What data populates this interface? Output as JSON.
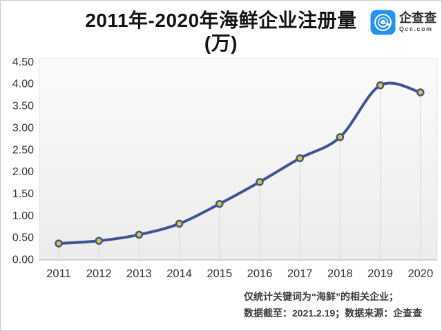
{
  "header": {
    "title_line1": "2011年-2020年海鲜企业注册量",
    "title_line2": "(万)"
  },
  "logo": {
    "brand": "企查查",
    "site": "Qcc.com",
    "icon_color": "#2592f3"
  },
  "footer": {
    "note1": "仅统计关键词为“海鲜”的相关企业；",
    "note2": "数据截至：2021.2.19；数据来源：企查查"
  },
  "chart_data": {
    "type": "line",
    "title": "2011年-2020年海鲜企业注册量(万)",
    "categories": [
      "2011",
      "2012",
      "2013",
      "2014",
      "2015",
      "2016",
      "2017",
      "2018",
      "2019",
      "2020"
    ],
    "series": [
      {
        "name": "海鲜企业注册量(万)",
        "values": [
          0.36,
          0.42,
          0.56,
          0.81,
          1.26,
          1.76,
          2.3,
          2.78,
          3.96,
          3.8
        ]
      }
    ],
    "ylim": [
      0,
      4.5
    ],
    "ytick_step": 0.5,
    "ytick_labels": [
      "0.00",
      "0.50",
      "1.00",
      "1.50",
      "2.00",
      "2.50",
      "3.00",
      "3.50",
      "4.00",
      "4.50"
    ],
    "xlabel": "",
    "ylabel": "",
    "legend": "none",
    "grid": "vertical drop lines from each data point to baseline",
    "line_color": "#3e5494",
    "marker_fill": "#e8c52e",
    "marker_stroke": "#3e5494",
    "axis_text_color": "#333333",
    "plot_bg_top": "#fbfbfb",
    "plot_bg_bottom": "#ececec"
  }
}
